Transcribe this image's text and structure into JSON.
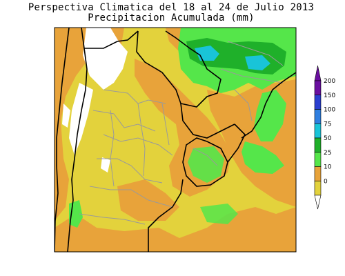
{
  "title": {
    "line1": "Perspectiva Climatica del 18 al 24 de Julio 2013",
    "line2": "Precipitacion Acumulada (mm)"
  },
  "colorbar": {
    "levels": [
      {
        "label": "200",
        "color": "#6a0fa0"
      },
      {
        "label": "150",
        "color": "#2a3fd0"
      },
      {
        "label": "100",
        "color": "#2f7fe0"
      },
      {
        "label": "75",
        "color": "#19c4d8"
      },
      {
        "label": "50",
        "color": "#1fb02a"
      },
      {
        "label": "25",
        "color": "#55e64a"
      },
      {
        "label": "10",
        "color": "#e8a33a"
      },
      {
        "label": "0",
        "color": "#e3d23c"
      }
    ],
    "base_color": "#ffffff"
  },
  "colors": {
    "background_field": "#e3d23c",
    "orange": "#e8a33a",
    "light_green": "#55e64a",
    "dark_green": "#1fb02a",
    "cyan": "#19c4d8",
    "white": "#ffffff",
    "border": "#000000",
    "province_lines": "#9a9a9a"
  }
}
